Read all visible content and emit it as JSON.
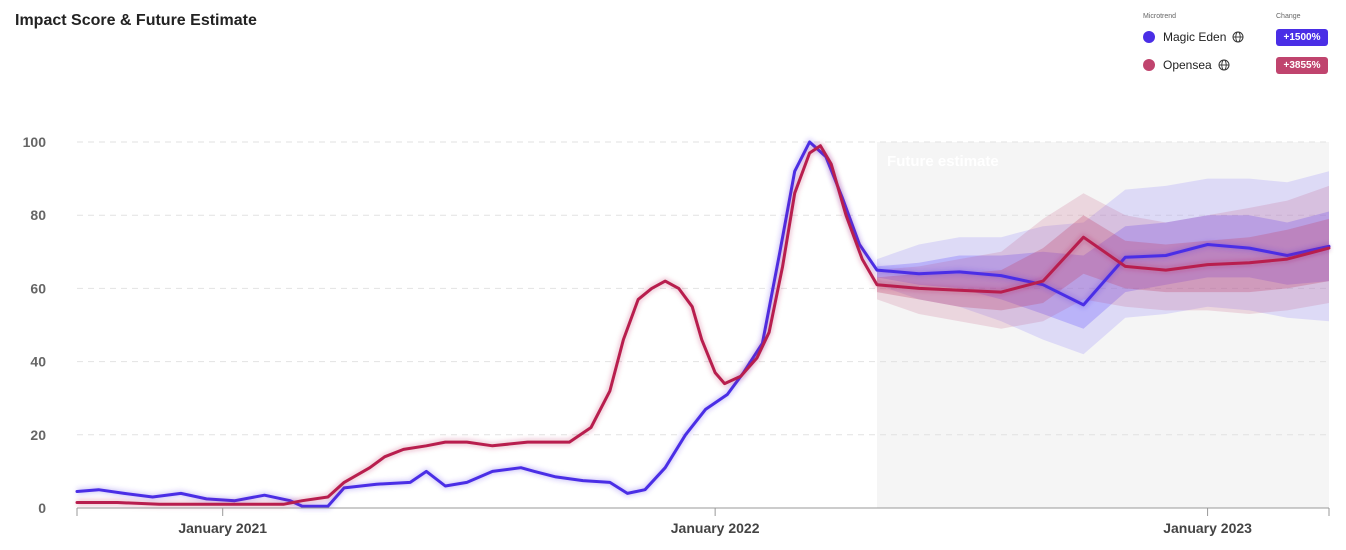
{
  "title": "Impact Score & Future Estimate",
  "legend": {
    "microtrend_header": "Microtrend",
    "change_header": "Change",
    "items": [
      {
        "label": "Magic Eden",
        "change": "+1500%",
        "color": "#4a2ee6",
        "icon": "globe-icon"
      },
      {
        "label": "Opensea",
        "change": "+3855%",
        "color": "#c0446e",
        "icon": "globe-icon"
      }
    ]
  },
  "chart_data": {
    "type": "line",
    "title": "Impact Score & Future Estimate",
    "xlabel": "",
    "ylabel": "",
    "ylim": [
      0,
      100
    ],
    "yticks": [
      0,
      20,
      40,
      60,
      80,
      100
    ],
    "xticks": [
      {
        "label": "January 2021",
        "date": "2021-01-01"
      },
      {
        "label": "January 2022",
        "date": "2022-01-01"
      },
      {
        "label": "January 2023",
        "date": "2023-01-01"
      }
    ],
    "xrange": [
      "2020-09-15",
      "2023-04-01"
    ],
    "grid": true,
    "future_start": "2022-05-01",
    "future_label": "Future estimate",
    "series": [
      {
        "name": "Magic Eden",
        "color": "#4a2ee6",
        "values": [
          [
            "2020-09-15",
            4.5
          ],
          [
            "2020-10-01",
            5
          ],
          [
            "2020-10-20",
            4
          ],
          [
            "2020-11-10",
            3
          ],
          [
            "2020-12-01",
            4
          ],
          [
            "2020-12-20",
            2.5
          ],
          [
            "2021-01-10",
            2
          ],
          [
            "2021-02-01",
            3.5
          ],
          [
            "2021-02-20",
            2
          ],
          [
            "2021-03-01",
            0.5
          ],
          [
            "2021-03-20",
            0.5
          ],
          [
            "2021-04-01",
            5.5
          ],
          [
            "2021-04-25",
            6.5
          ],
          [
            "2021-05-20",
            7
          ],
          [
            "2021-06-01",
            10
          ],
          [
            "2021-06-15",
            6
          ],
          [
            "2021-07-01",
            7
          ],
          [
            "2021-07-20",
            10
          ],
          [
            "2021-08-10",
            11
          ],
          [
            "2021-08-20",
            10
          ],
          [
            "2021-09-05",
            8.5
          ],
          [
            "2021-09-25",
            7.5
          ],
          [
            "2021-10-15",
            7
          ],
          [
            "2021-10-28",
            4
          ],
          [
            "2021-11-10",
            5
          ],
          [
            "2021-11-25",
            11
          ],
          [
            "2021-12-10",
            20
          ],
          [
            "2021-12-25",
            27
          ],
          [
            "2022-01-10",
            31
          ],
          [
            "2022-01-22",
            37
          ],
          [
            "2022-02-05",
            45
          ],
          [
            "2022-02-18",
            70
          ],
          [
            "2022-03-01",
            92
          ],
          [
            "2022-03-12",
            100
          ],
          [
            "2022-03-24",
            96
          ],
          [
            "2022-04-05",
            85
          ],
          [
            "2022-04-18",
            72
          ],
          [
            "2022-05-01",
            65
          ],
          [
            "2022-06-01",
            64
          ],
          [
            "2022-07-01",
            64.5
          ],
          [
            "2022-08-01",
            63.5
          ],
          [
            "2022-09-01",
            61
          ],
          [
            "2022-10-01",
            55.5
          ],
          [
            "2022-11-01",
            68.5
          ],
          [
            "2022-12-01",
            69
          ],
          [
            "2023-01-01",
            72
          ],
          [
            "2023-02-01",
            71
          ],
          [
            "2023-03-01",
            69
          ],
          [
            "2023-04-01",
            71.5
          ]
        ],
        "band_inner": [
          [
            "2022-05-01",
            63,
            66
          ],
          [
            "2022-06-01",
            61,
            67
          ],
          [
            "2022-07-01",
            60,
            69
          ],
          [
            "2022-08-01",
            57,
            69
          ],
          [
            "2022-09-01",
            53,
            70
          ],
          [
            "2022-10-01",
            49,
            69
          ],
          [
            "2022-11-01",
            59,
            77
          ],
          [
            "2022-12-01",
            61,
            78
          ],
          [
            "2023-01-01",
            63,
            80
          ],
          [
            "2023-02-01",
            63,
            80
          ],
          [
            "2023-03-01",
            61,
            78
          ],
          [
            "2023-04-01",
            62,
            81
          ]
        ],
        "band_outer": [
          [
            "2022-05-01",
            61,
            68
          ],
          [
            "2022-06-01",
            57,
            72
          ],
          [
            "2022-07-01",
            55,
            74
          ],
          [
            "2022-08-01",
            51,
            74
          ],
          [
            "2022-09-01",
            46,
            77
          ],
          [
            "2022-10-01",
            42,
            78
          ],
          [
            "2022-11-01",
            52,
            87
          ],
          [
            "2022-12-01",
            53,
            88
          ],
          [
            "2023-01-01",
            55,
            90
          ],
          [
            "2023-02-01",
            54,
            90
          ],
          [
            "2023-03-01",
            52,
            89
          ],
          [
            "2023-04-01",
            51,
            92
          ]
        ]
      },
      {
        "name": "Opensea",
        "color": "#b81e4e",
        "values": [
          [
            "2020-09-15",
            1.5
          ],
          [
            "2020-10-15",
            1.5
          ],
          [
            "2020-11-15",
            1
          ],
          [
            "2020-12-15",
            1
          ],
          [
            "2021-01-15",
            1
          ],
          [
            "2021-02-15",
            1
          ],
          [
            "2021-03-01",
            2
          ],
          [
            "2021-03-20",
            3
          ],
          [
            "2021-04-01",
            7
          ],
          [
            "2021-04-20",
            11
          ],
          [
            "2021-05-01",
            14
          ],
          [
            "2021-05-15",
            16
          ],
          [
            "2021-06-01",
            17
          ],
          [
            "2021-06-15",
            18
          ],
          [
            "2021-07-01",
            18
          ],
          [
            "2021-07-20",
            17
          ],
          [
            "2021-08-15",
            18
          ],
          [
            "2021-09-01",
            18
          ],
          [
            "2021-09-15",
            18
          ],
          [
            "2021-10-01",
            22
          ],
          [
            "2021-10-15",
            32
          ],
          [
            "2021-10-25",
            46
          ],
          [
            "2021-11-05",
            57
          ],
          [
            "2021-11-15",
            60
          ],
          [
            "2021-11-25",
            62
          ],
          [
            "2021-12-05",
            60
          ],
          [
            "2021-12-15",
            55
          ],
          [
            "2021-12-22",
            46
          ],
          [
            "2022-01-01",
            37
          ],
          [
            "2022-01-08",
            34
          ],
          [
            "2022-01-20",
            36
          ],
          [
            "2022-02-01",
            41
          ],
          [
            "2022-02-10",
            48
          ],
          [
            "2022-02-20",
            66
          ],
          [
            "2022-03-01",
            86
          ],
          [
            "2022-03-12",
            97
          ],
          [
            "2022-03-20",
            99
          ],
          [
            "2022-03-28",
            94
          ],
          [
            "2022-04-08",
            80
          ],
          [
            "2022-04-20",
            68
          ],
          [
            "2022-05-01",
            61
          ],
          [
            "2022-06-01",
            60
          ],
          [
            "2022-07-01",
            59.5
          ],
          [
            "2022-08-01",
            59
          ],
          [
            "2022-09-01",
            62
          ],
          [
            "2022-10-01",
            74
          ],
          [
            "2022-11-01",
            66
          ],
          [
            "2022-12-01",
            65
          ],
          [
            "2023-01-01",
            66.5
          ],
          [
            "2023-02-01",
            67
          ],
          [
            "2023-03-01",
            68
          ],
          [
            "2023-04-01",
            71
          ]
        ],
        "band_inner": [
          [
            "2022-05-01",
            59,
            63
          ],
          [
            "2022-06-01",
            57,
            64
          ],
          [
            "2022-07-01",
            55,
            64
          ],
          [
            "2022-08-01",
            54,
            65
          ],
          [
            "2022-09-01",
            56,
            71
          ],
          [
            "2022-10-01",
            64,
            80
          ],
          [
            "2022-11-01",
            60,
            73
          ],
          [
            "2022-12-01",
            59,
            72
          ],
          [
            "2023-01-01",
            59,
            73
          ],
          [
            "2023-02-01",
            59,
            74
          ],
          [
            "2023-03-01",
            60,
            76
          ],
          [
            "2023-04-01",
            62,
            79
          ]
        ],
        "band_outer": [
          [
            "2022-05-01",
            57,
            65
          ],
          [
            "2022-06-01",
            53,
            66
          ],
          [
            "2022-07-01",
            51,
            68
          ],
          [
            "2022-08-01",
            49,
            70
          ],
          [
            "2022-09-01",
            51,
            79
          ],
          [
            "2022-10-01",
            57,
            86
          ],
          [
            "2022-11-01",
            55,
            80
          ],
          [
            "2022-12-01",
            54,
            78
          ],
          [
            "2023-01-01",
            54,
            80
          ],
          [
            "2023-02-01",
            53,
            82
          ],
          [
            "2023-03-01",
            54,
            84
          ],
          [
            "2023-04-01",
            56,
            88
          ]
        ]
      }
    ]
  }
}
